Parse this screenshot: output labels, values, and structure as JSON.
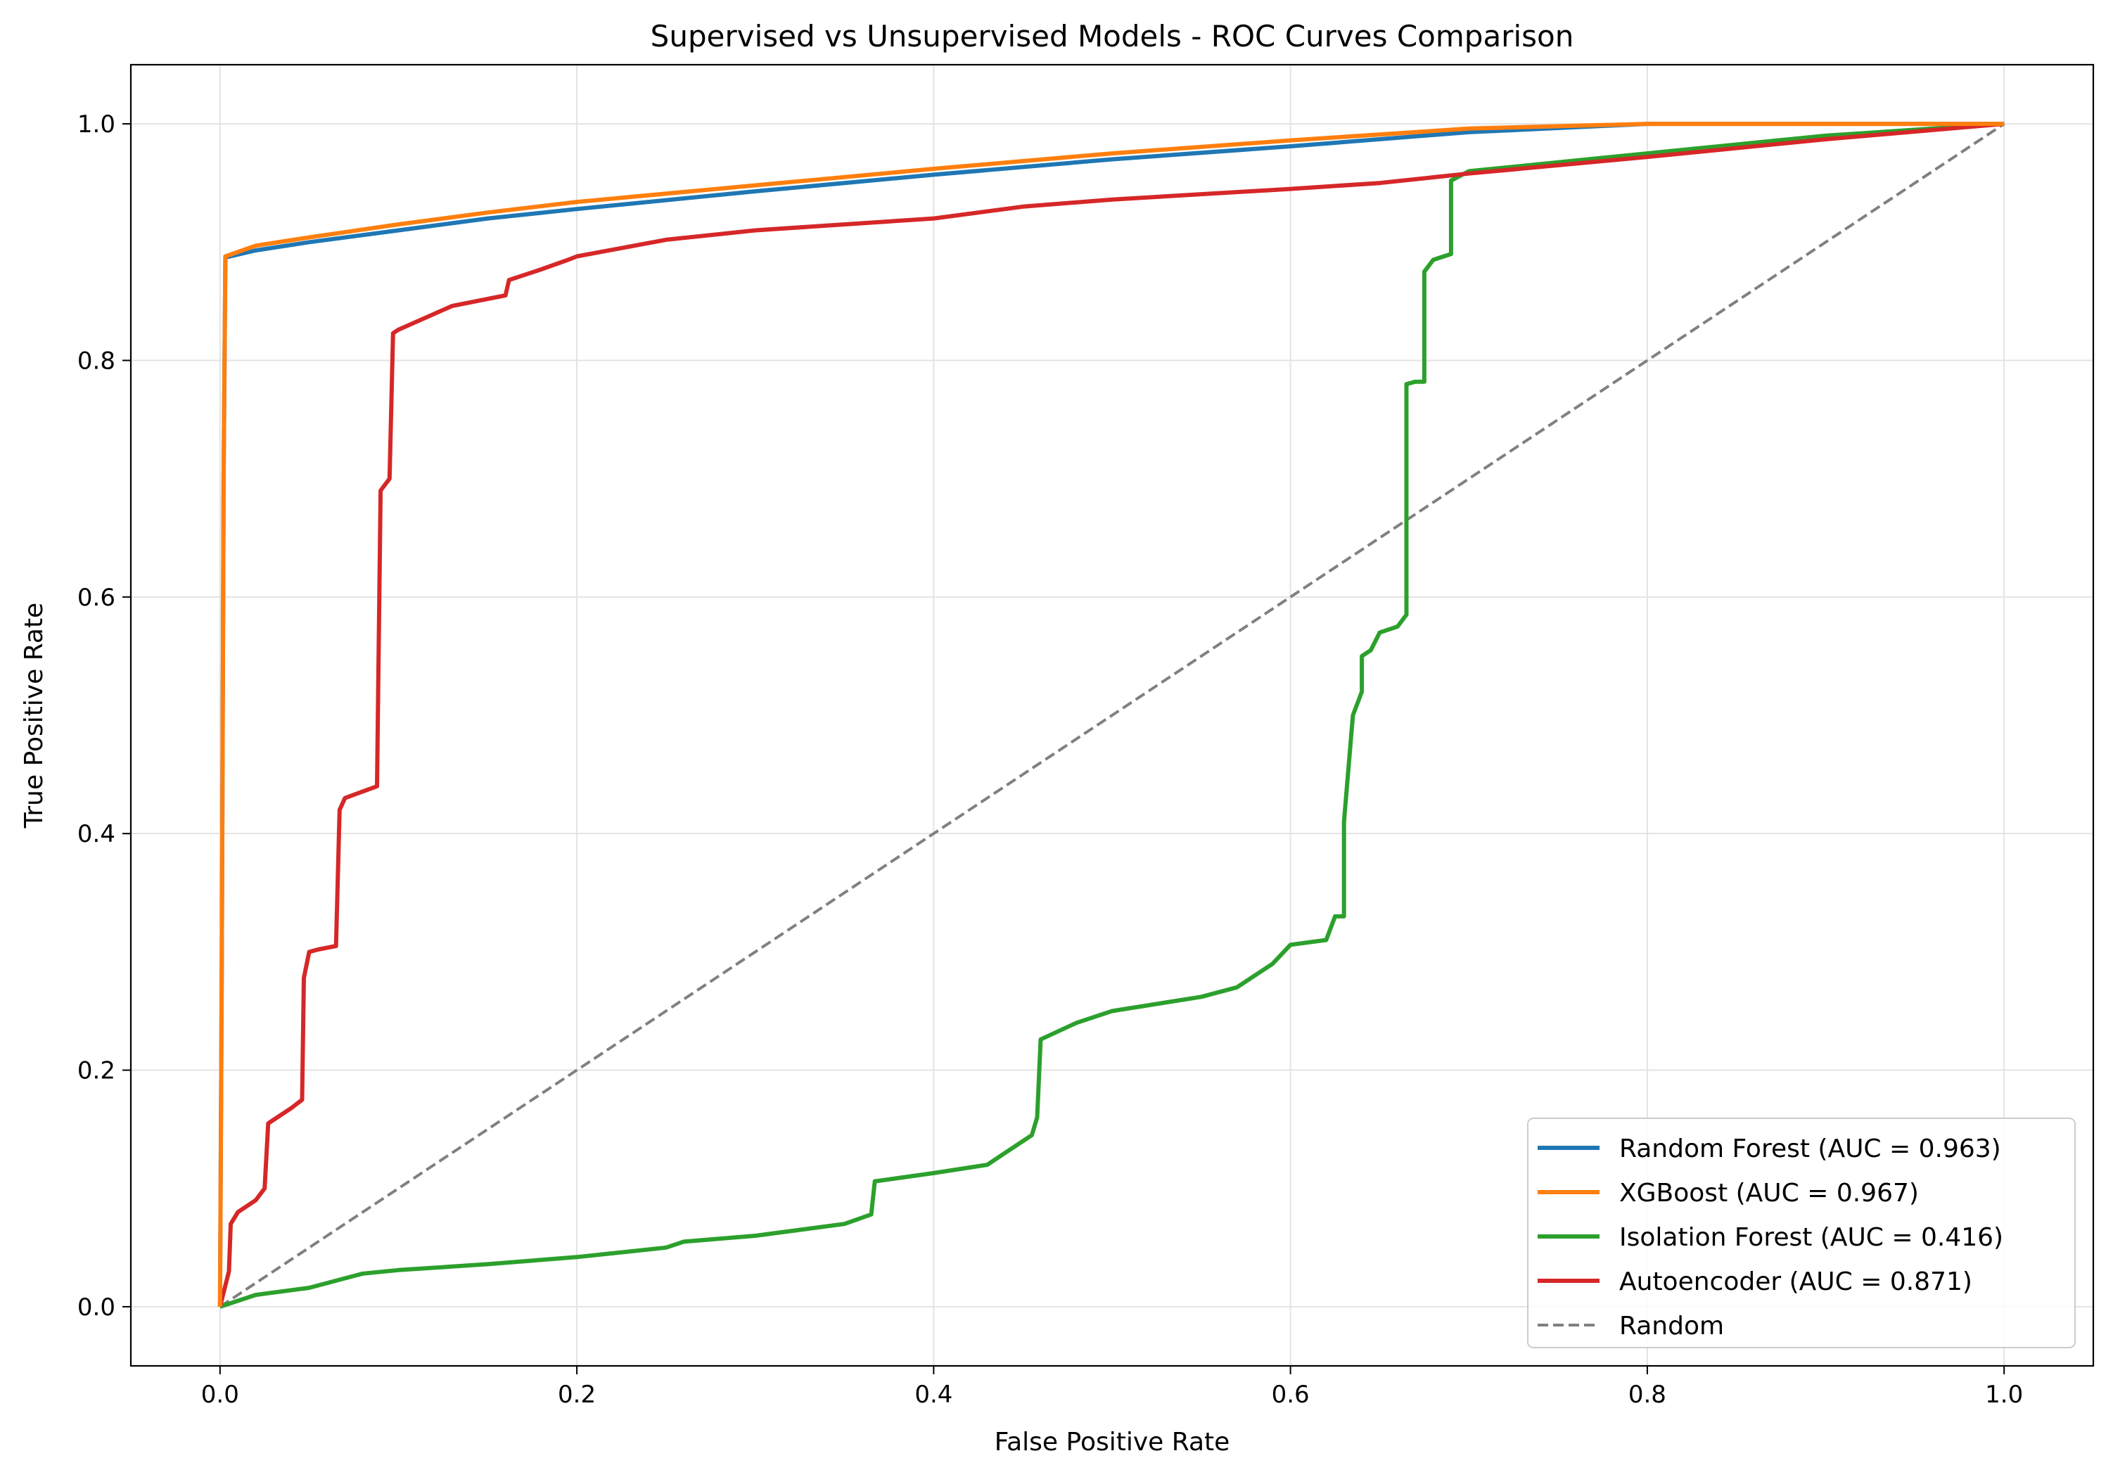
{
  "chart_data": {
    "type": "line",
    "title": "Supervised vs Unsupervised Models - ROC Curves Comparison",
    "xlabel": "False Positive Rate",
    "ylabel": "True Positive Rate",
    "xlim": [
      -0.05,
      1.05
    ],
    "ylim": [
      -0.05,
      1.05
    ],
    "xticks": [
      "0.0",
      "0.2",
      "0.4",
      "0.6",
      "0.8",
      "1.0"
    ],
    "yticks": [
      "0.0",
      "0.2",
      "0.4",
      "0.6",
      "0.8",
      "1.0"
    ],
    "grid": true,
    "legend_position": "lower-right",
    "series": [
      {
        "name": "Random Forest (AUC = 0.963)",
        "color": "#1f77b4",
        "style": "solid",
        "x": [
          0,
          0.001,
          0.002,
          0.003,
          0.02,
          0.05,
          0.1,
          0.15,
          0.2,
          0.3,
          0.4,
          0.5,
          0.6,
          0.7,
          0.8,
          0.9,
          1.0
        ],
        "y": [
          0,
          0.3,
          0.7,
          0.887,
          0.893,
          0.9,
          0.91,
          0.92,
          0.928,
          0.943,
          0.957,
          0.97,
          0.981,
          0.993,
          1.0,
          1.0,
          1.0
        ]
      },
      {
        "name": "XGBoost (AUC = 0.967)",
        "color": "#ff7f0e",
        "style": "solid",
        "x": [
          0,
          0.001,
          0.002,
          0.003,
          0.02,
          0.05,
          0.1,
          0.15,
          0.2,
          0.3,
          0.4,
          0.5,
          0.6,
          0.7,
          0.8,
          0.9,
          1.0
        ],
        "y": [
          0,
          0.3,
          0.7,
          0.888,
          0.897,
          0.904,
          0.915,
          0.925,
          0.934,
          0.948,
          0.962,
          0.975,
          0.986,
          0.996,
          1.0,
          1.0,
          1.0
        ]
      },
      {
        "name": "Isolation Forest (AUC = 0.416)",
        "color": "#2ca02c",
        "style": "solid",
        "x": [
          0,
          0.02,
          0.05,
          0.08,
          0.1,
          0.15,
          0.2,
          0.25,
          0.26,
          0.3,
          0.35,
          0.365,
          0.367,
          0.4,
          0.43,
          0.44,
          0.455,
          0.458,
          0.46,
          0.48,
          0.5,
          0.55,
          0.57,
          0.58,
          0.59,
          0.6,
          0.62,
          0.625,
          0.625,
          0.63,
          0.63,
          0.635,
          0.64,
          0.64,
          0.645,
          0.65,
          0.66,
          0.665,
          0.665,
          0.67,
          0.675,
          0.675,
          0.68,
          0.69,
          0.69,
          0.7,
          0.8,
          0.9,
          1.0
        ],
        "y": [
          0,
          0.01,
          0.016,
          0.028,
          0.031,
          0.036,
          0.042,
          0.05,
          0.055,
          0.06,
          0.07,
          0.078,
          0.106,
          0.113,
          0.12,
          0.13,
          0.145,
          0.16,
          0.226,
          0.24,
          0.25,
          0.262,
          0.27,
          0.28,
          0.29,
          0.306,
          0.31,
          0.33,
          0.33,
          0.33,
          0.41,
          0.5,
          0.52,
          0.55,
          0.555,
          0.57,
          0.575,
          0.585,
          0.78,
          0.782,
          0.782,
          0.875,
          0.885,
          0.89,
          0.952,
          0.96,
          0.975,
          0.99,
          1.0
        ]
      },
      {
        "name": "Autoencoder (AUC = 0.871)",
        "color": "#d62728",
        "style": "solid",
        "x": [
          0,
          0.005,
          0.006,
          0.01,
          0.02,
          0.025,
          0.027,
          0.04,
          0.046,
          0.047,
          0.05,
          0.055,
          0.065,
          0.067,
          0.07,
          0.088,
          0.09,
          0.095,
          0.097,
          0.1,
          0.13,
          0.16,
          0.162,
          0.18,
          0.195,
          0.2,
          0.25,
          0.3,
          0.4,
          0.45,
          0.5,
          0.6,
          0.65,
          0.7,
          0.8,
          0.9,
          1.0
        ],
        "y": [
          0,
          0.03,
          0.07,
          0.08,
          0.09,
          0.1,
          0.155,
          0.168,
          0.175,
          0.278,
          0.3,
          0.302,
          0.305,
          0.42,
          0.43,
          0.44,
          0.69,
          0.7,
          0.823,
          0.826,
          0.846,
          0.855,
          0.868,
          0.877,
          0.885,
          0.888,
          0.902,
          0.91,
          0.92,
          0.93,
          0.936,
          0.945,
          0.95,
          0.958,
          0.972,
          0.987,
          1.0
        ]
      },
      {
        "name": "Random",
        "color": "#808080",
        "style": "dashed",
        "x": [
          0,
          1
        ],
        "y": [
          0,
          1
        ]
      }
    ]
  }
}
